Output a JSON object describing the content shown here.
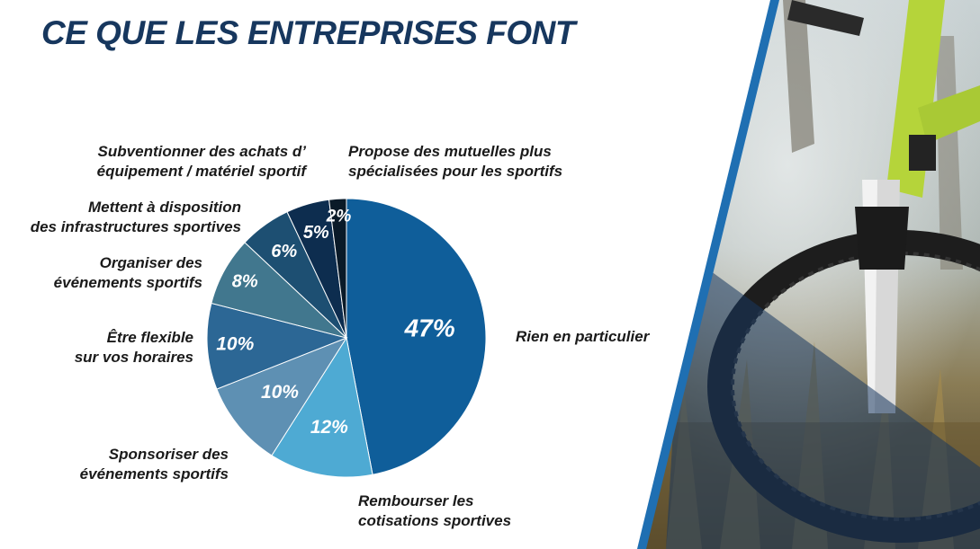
{
  "page": {
    "title": "CE QUE LES ENTREPRISES FONT"
  },
  "colors": {
    "title": "#17375e",
    "stripe": "#1f6fb2"
  },
  "chart_data": {
    "type": "pie",
    "slices": [
      {
        "label": [
          "Rien en particulier"
        ],
        "value": 47,
        "value_label": "47%",
        "color": "#0f5e9a"
      },
      {
        "label": [
          "Rembourser les",
          "cotisations sportives"
        ],
        "value": 12,
        "value_label": "12%",
        "color": "#4eaad3"
      },
      {
        "label": [
          "Sponsoriser des",
          "événements sportifs"
        ],
        "value": 10,
        "value_label": "10%",
        "color": "#5e90b3"
      },
      {
        "label": [
          "Être flexible",
          "sur vos horaires"
        ],
        "value": 10,
        "value_label": "10%",
        "color": "#2c6795"
      },
      {
        "label": [
          "Organiser des",
          "événements sportifs"
        ],
        "value": 8,
        "value_label": "8%",
        "color": "#41778e"
      },
      {
        "label": [
          "Mettent à disposition",
          "des infrastructures sportives"
        ],
        "value": 6,
        "value_label": "6%",
        "color": "#1d4f72"
      },
      {
        "label": [
          "Subventionner des achats d’",
          "équipement / matériel sportif"
        ],
        "value": 5,
        "value_label": "5%",
        "color": "#0d2d4f"
      },
      {
        "label": [
          "Propose des mutuelles plus",
          "spécialisées pour les sportifs"
        ],
        "value": 2,
        "value_label": "2%",
        "color": "#0a1a28"
      }
    ]
  }
}
